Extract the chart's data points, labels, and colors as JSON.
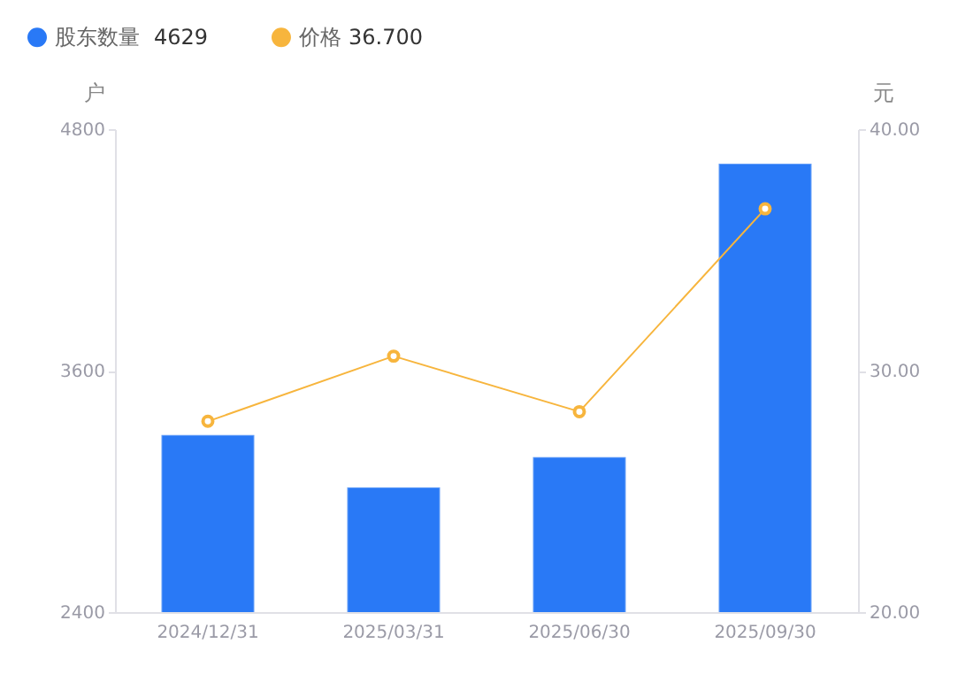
{
  "chart_data": {
    "type": "bar",
    "categories": [
      "2024/12/31",
      "2025/03/31",
      "2025/06/30",
      "2025/09/30"
    ],
    "series": [
      {
        "name": "股东数量",
        "type": "bar",
        "color": "#2979f6",
        "values": [
          3280,
          3020,
          3170,
          4629
        ]
      },
      {
        "name": "价格",
        "type": "line",
        "axis": "y2",
        "color": "#f7b53d",
        "values": [
          27.9,
          30.6,
          28.3,
          36.7
        ]
      }
    ],
    "ylabel": "户",
    "y2label": "元",
    "ylim": [
      2400,
      4800
    ],
    "yticks": [
      2400,
      3600,
      4800
    ],
    "y2lim": [
      20,
      40
    ],
    "y2ticks": [
      {
        "value": 20,
        "label": "20.00"
      },
      {
        "value": 30,
        "label": "30.00"
      },
      {
        "value": 40,
        "label": "40.00"
      }
    ],
    "legend": "top left",
    "marker": "circle",
    "annotations": [
      "4629",
      "36.700"
    ]
  }
}
